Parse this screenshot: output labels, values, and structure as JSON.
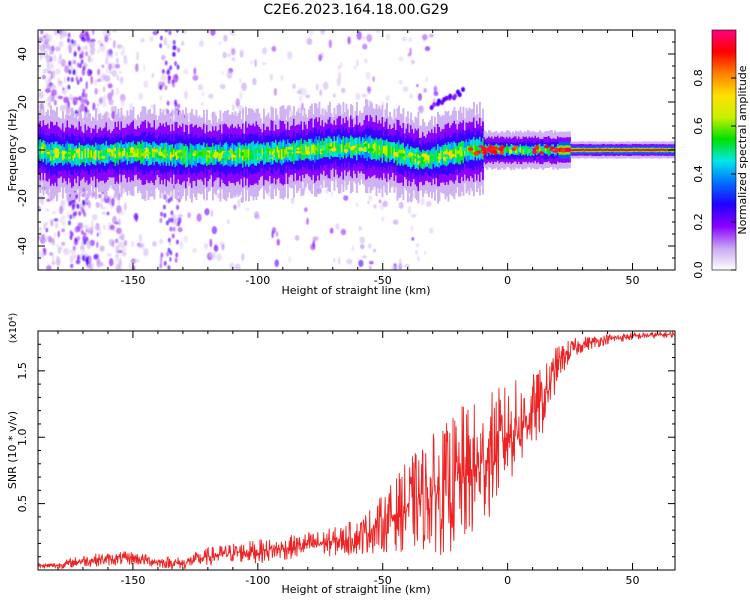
{
  "figure_title": "C2E6.2023.164.18.00.G29",
  "chart_data": [
    {
      "type": "heatmap",
      "title": "",
      "xlabel": "Height of straight line (km)",
      "ylabel": "Frequency (Hz)",
      "xlim": [
        -188,
        67
      ],
      "ylim": [
        -50,
        50
      ],
      "x_ticks": [
        -150,
        -100,
        -50,
        0,
        50
      ],
      "y_ticks": [
        -40,
        -20,
        0,
        20,
        40
      ],
      "colorbar": {
        "label": "Normalized spectral amplitude",
        "range": [
          0,
          1
        ],
        "ticks": [
          "0.0",
          "0.2",
          "0.4",
          "0.6",
          "0.8"
        ],
        "colormap": [
          "#ffffff",
          "#c8a8f0",
          "#8a00ff",
          "#2000ff",
          "#0070ff",
          "#00e8e8",
          "#00e000",
          "#c8f000",
          "#ffe000",
          "#ff8000",
          "#ff0000",
          "#ff0080"
        ]
      },
      "ridge": [
        {
          "x": -185,
          "y": -1.5
        },
        {
          "x": -170,
          "y": -2
        },
        {
          "x": -150,
          "y": -1
        },
        {
          "x": -130,
          "y": -2
        },
        {
          "x": -110,
          "y": -2
        },
        {
          "x": -90,
          "y": -1
        },
        {
          "x": -70,
          "y": 1
        },
        {
          "x": -55,
          "y": 1
        },
        {
          "x": -45,
          "y": -1
        },
        {
          "x": -35,
          "y": -4
        },
        {
          "x": -25,
          "y": -2
        },
        {
          "x": -15,
          "y": 0
        },
        {
          "x": 0,
          "y": 0
        },
        {
          "x": 20,
          "y": 0
        },
        {
          "x": 67,
          "y": 0
        }
      ]
    },
    {
      "type": "line",
      "title": "",
      "xlabel": "Height of straight line (km)",
      "ylabel": "SNR (10 * v/v)",
      "y_exponent": "(x10⁴)",
      "xlim": [
        -188,
        67
      ],
      "ylim": [
        0,
        18000
      ],
      "x_ticks": [
        -150,
        -100,
        -50,
        0,
        50
      ],
      "y_ticks": [
        0.5,
        1.0,
        1.5
      ],
      "y_tick_labels": [
        "0.5",
        "1.0",
        "1.5"
      ],
      "line_color": "#ee2222",
      "series": [
        {
          "x": [
            -188,
            -180,
            -170,
            -160,
            -150,
            -140,
            -130,
            -120,
            -110,
            -100,
            -90,
            -80,
            -70,
            -60,
            -55,
            -50,
            -45,
            -40,
            -35,
            -30,
            -25,
            -20,
            -15,
            -10,
            -5,
            0,
            5,
            10,
            15,
            20,
            25,
            30,
            40,
            50,
            60,
            67
          ],
          "mean": [
            300,
            350,
            700,
            800,
            900,
            600,
            500,
            1000,
            1300,
            1400,
            1600,
            1900,
            2100,
            2500,
            3000,
            3500,
            4200,
            4800,
            5400,
            5800,
            6000,
            6800,
            7200,
            8000,
            9200,
            10200,
            11000,
            11800,
            13000,
            15500,
            16500,
            17000,
            17400,
            17600,
            17700,
            17750
          ],
          "spread": [
            200,
            250,
            500,
            500,
            550,
            450,
            500,
            700,
            800,
            900,
            900,
            1000,
            1100,
            1400,
            1800,
            2200,
            2800,
            3500,
            4000,
            4500,
            5000,
            5500,
            5500,
            5000,
            4500,
            4000,
            3500,
            3000,
            2500,
            1500,
            900,
            600,
            400,
            300,
            250,
            250
          ]
        }
      ]
    }
  ]
}
